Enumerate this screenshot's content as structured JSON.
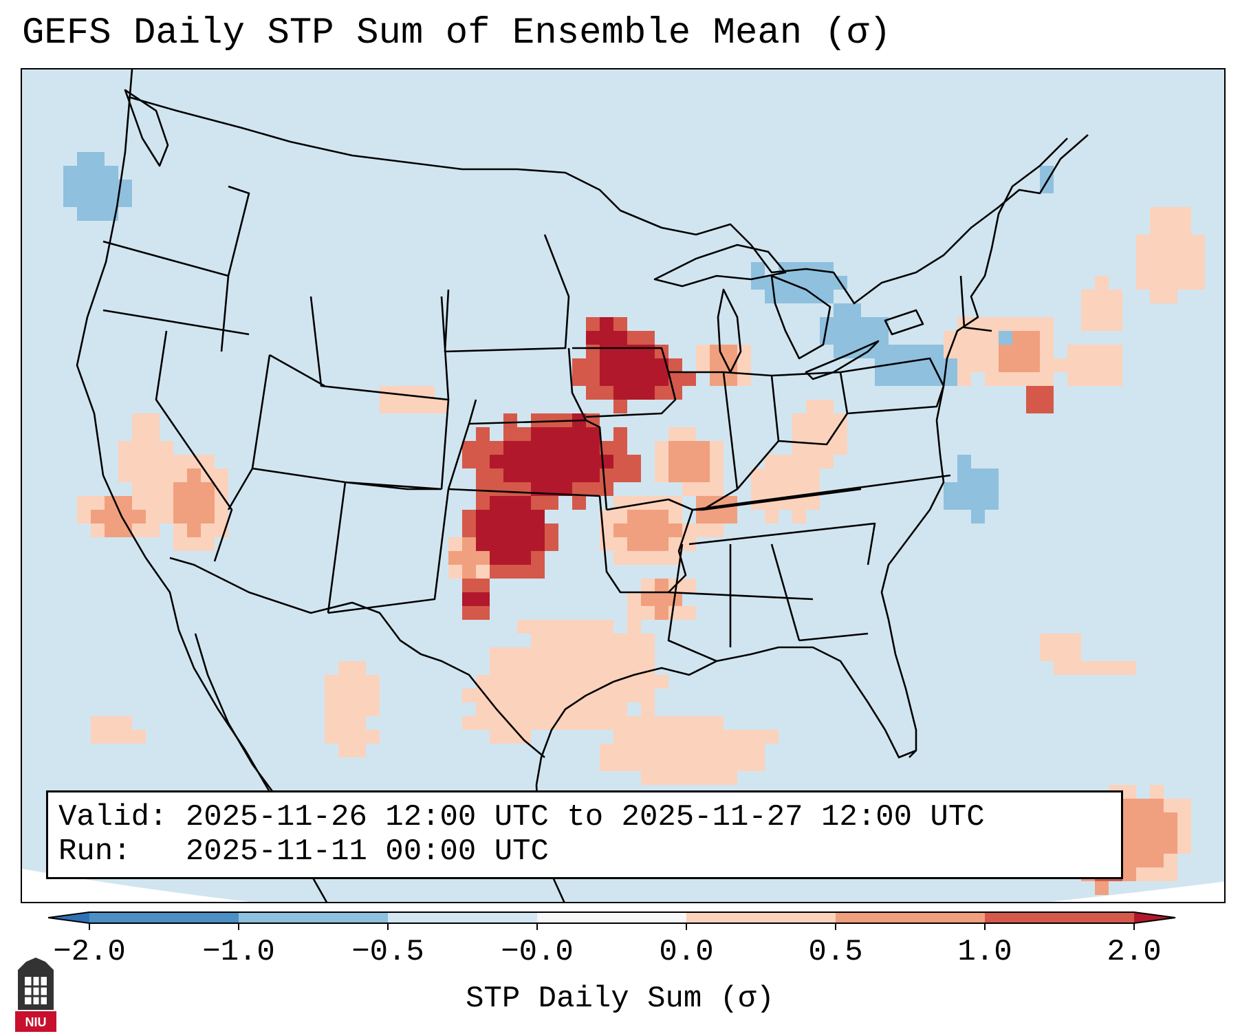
{
  "title": "GEFS Daily STP Sum of Ensemble Mean (σ)",
  "info": {
    "valid_label": "Valid:",
    "valid_value": "2025-11-26 12:00 UTC to 2025-11-27 12:00 UTC",
    "run_label": "Run:",
    "run_value": "2025-11-11 00:00 UTC"
  },
  "colorbar": {
    "label": "STP Daily Sum (σ)",
    "ticks": [
      "−2.0",
      "−1.0",
      "−0.5",
      "−0.0",
      "0.0",
      "0.5",
      "1.0",
      "2.0"
    ],
    "colors": [
      "#4b8fc4",
      "#8fc0de",
      "#d4e6f1",
      "#f7f7f7",
      "#fbd2bc",
      "#f0a07f",
      "#d4594a"
    ],
    "under_color": "#2e72b5",
    "over_color": "#b2182b"
  },
  "map": {
    "background_color": "#d1e5f0",
    "outside_color": "#ffffff",
    "region": "Continental United States",
    "boundaries": [
      "coastlines",
      "country borders",
      "state borders"
    ]
  },
  "chart_data": {
    "type": "heatmap",
    "title": "GEFS Daily STP Sum of Ensemble Mean (σ)",
    "colorbar_label": "STP Daily Sum (σ)",
    "levels": [
      -2.0,
      -1.0,
      -0.5,
      -0.0,
      0.0,
      0.5,
      1.0,
      2.0
    ],
    "regions": [
      {
        "area": "Southern Great Plains (KS, OK, TX panhandle)",
        "value": 2.0
      },
      {
        "area": "Iowa / southern Minnesota / Wisconsin",
        "value": 2.0
      },
      {
        "area": "Missouri / Arkansas / eastern Oklahoma",
        "value": 0.75
      },
      {
        "area": "Texas / Gulf coast",
        "value": 0.25
      },
      {
        "area": "Southern New England",
        "value": 1.0
      },
      {
        "area": "Caribbean near Hispaniola",
        "value": 1.0
      },
      {
        "area": "Great Lakes",
        "value": -0.75
      },
      {
        "area": "Ohio Valley / Appalachians",
        "value": -0.5
      },
      {
        "area": "Pacific Northwest offshore",
        "value": -0.75
      },
      {
        "area": "California / Nevada",
        "value": 0.5
      }
    ]
  },
  "logo": {
    "text": "NIU",
    "bg_color": "#c8102e"
  }
}
